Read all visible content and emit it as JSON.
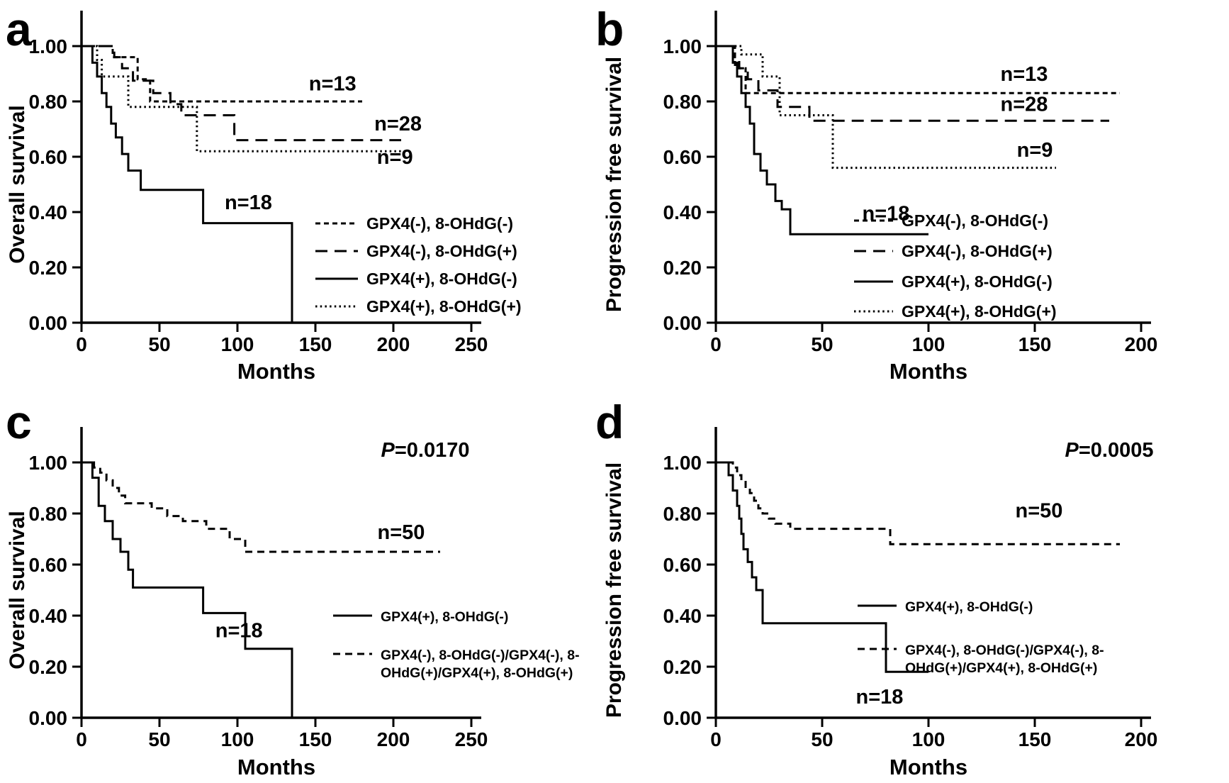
{
  "figure": {
    "background": "#ffffff",
    "ink_color": "#000000"
  },
  "chart_data": [
    {
      "type": "line",
      "panel_letter": "a",
      "xlabel": "Months",
      "ylabel": "Overall survival",
      "xlim": [
        0,
        250
      ],
      "ylim": [
        0,
        1
      ],
      "xticks": [
        0,
        50,
        100,
        150,
        200,
        250
      ],
      "yticks": [
        1.0,
        0.8,
        0.6,
        0.4,
        0.2,
        0.0
      ],
      "p_value": null,
      "series": [
        {
          "name": "GPX4(-), 8-OHdG(-)",
          "n": 13,
          "style": "dash-short",
          "x": [
            0,
            20,
            20,
            36,
            36,
            44,
            44,
            180
          ],
          "y": [
            1,
            1,
            0.96,
            0.96,
            0.88,
            0.88,
            0.8,
            0.8
          ]
        },
        {
          "name": "GPX4(-), 8-OHdG(+)",
          "n": 28,
          "style": "dash-long",
          "x": [
            0,
            21,
            21,
            26,
            26,
            33,
            33,
            46,
            46,
            57,
            57,
            64,
            64,
            98,
            98,
            205
          ],
          "y": [
            1,
            1,
            0.96,
            0.96,
            0.92,
            0.92,
            0.875,
            0.875,
            0.83,
            0.83,
            0.79,
            0.79,
            0.75,
            0.75,
            0.66,
            0.66
          ]
        },
        {
          "name": "GPX4(+), 8-OHdG(-)",
          "n": 18,
          "style": "solid",
          "x": [
            0,
            7,
            7,
            10,
            10,
            13,
            13,
            16,
            16,
            19,
            19,
            22,
            22,
            26,
            26,
            30,
            30,
            38,
            38,
            78,
            78,
            135,
            135
          ],
          "y": [
            1,
            1,
            0.94,
            0.94,
            0.89,
            0.89,
            0.83,
            0.83,
            0.78,
            0.78,
            0.72,
            0.72,
            0.67,
            0.67,
            0.61,
            0.61,
            0.55,
            0.55,
            0.48,
            0.48,
            0.36,
            0.36,
            0
          ]
        },
        {
          "name": "GPX4(+), 8-OHdG(+)",
          "n": 9,
          "style": "dotted",
          "x": [
            0,
            10,
            10,
            13,
            13,
            30,
            30,
            74,
            74,
            210
          ],
          "y": [
            1,
            1,
            0.95,
            0.95,
            0.89,
            0.89,
            0.78,
            0.78,
            0.62,
            0.62
          ]
        }
      ],
      "annotations": [
        {
          "text": "n=13",
          "x": 161,
          "y": 0.84
        },
        {
          "text": "n=28",
          "x": 203,
          "y": 0.695
        },
        {
          "text": "n=9",
          "x": 201,
          "y": 0.575
        },
        {
          "text": "n=18",
          "x": 107,
          "y": 0.41
        }
      ],
      "legend": [
        {
          "style": "dash-short",
          "lines": [
            "GPX4(-), 8-OHdG(-)"
          ]
        },
        {
          "style": "dash-long",
          "lines": [
            "GPX4(-), 8-OHdG(+)"
          ]
        },
        {
          "style": "solid",
          "lines": [
            "GPX4(+), 8-OHdG(-)"
          ]
        },
        {
          "style": "dotted",
          "lines": [
            "GPX4(+), 8-OHdG(+)"
          ]
        }
      ]
    },
    {
      "type": "line",
      "panel_letter": "b",
      "xlabel": "Months",
      "ylabel": "Progression free survival",
      "xlim": [
        0,
        200
      ],
      "ylim": [
        0,
        1
      ],
      "xticks": [
        0,
        50,
        100,
        150,
        200
      ],
      "yticks": [
        1.0,
        0.8,
        0.6,
        0.4,
        0.2,
        0.0
      ],
      "p_value": null,
      "series": [
        {
          "name": "GPX4(-), 8-OHdG(-)",
          "n": 13,
          "style": "dash-short",
          "x": [
            0,
            9,
            9,
            14,
            14,
            190
          ],
          "y": [
            1,
            1,
            0.92,
            0.92,
            0.83,
            0.83
          ]
        },
        {
          "name": "GPX4(-), 8-OHdG(+)",
          "n": 28,
          "style": "dash-long",
          "x": [
            0,
            8,
            8,
            11,
            11,
            15,
            15,
            20,
            20,
            29,
            29,
            44,
            44,
            185
          ],
          "y": [
            1,
            1,
            0.96,
            0.96,
            0.92,
            0.92,
            0.88,
            0.88,
            0.84,
            0.84,
            0.78,
            0.78,
            0.73,
            0.73
          ]
        },
        {
          "name": "GPX4(+), 8-OHdG(-)",
          "n": 18,
          "style": "solid",
          "x": [
            0,
            8,
            8,
            10,
            10,
            12,
            12,
            14,
            14,
            16,
            16,
            18,
            18,
            21,
            21,
            24,
            24,
            28,
            28,
            31,
            31,
            35,
            35,
            100
          ],
          "y": [
            1,
            1,
            0.94,
            0.94,
            0.89,
            0.89,
            0.83,
            0.83,
            0.78,
            0.78,
            0.72,
            0.72,
            0.61,
            0.61,
            0.55,
            0.55,
            0.5,
            0.5,
            0.44,
            0.44,
            0.41,
            0.41,
            0.32,
            0.32
          ]
        },
        {
          "name": "GPX4(+), 8-OHdG(+)",
          "n": 9,
          "style": "dotted",
          "x": [
            0,
            12,
            12,
            22,
            22,
            30,
            30,
            55,
            55,
            160
          ],
          "y": [
            1,
            1,
            0.97,
            0.97,
            0.89,
            0.89,
            0.75,
            0.75,
            0.56,
            0.56
          ]
        }
      ],
      "annotations": [
        {
          "text": "n=13",
          "x": 145,
          "y": 0.875
        },
        {
          "text": "n=28",
          "x": 145,
          "y": 0.765
        },
        {
          "text": "n=9",
          "x": 150,
          "y": 0.6
        },
        {
          "text": "n=18",
          "x": 80,
          "y": 0.37
        }
      ],
      "legend": [
        {
          "style": "dash-short",
          "lines": [
            "GPX4(-), 8-OHdG(-)"
          ]
        },
        {
          "style": "dash-long",
          "lines": [
            "GPX4(-), 8-OHdG(+)"
          ]
        },
        {
          "style": "solid",
          "lines": [
            "GPX4(+), 8-OHdG(-)"
          ]
        },
        {
          "style": "dotted",
          "lines": [
            "GPX4(+), 8-OHdG(+)"
          ]
        }
      ]
    },
    {
      "type": "line",
      "panel_letter": "c",
      "xlabel": "Months",
      "ylabel": "Overall survival",
      "xlim": [
        0,
        250
      ],
      "ylim": [
        0,
        1
      ],
      "xticks": [
        0,
        50,
        100,
        150,
        200,
        250
      ],
      "yticks": [
        1.0,
        0.8,
        0.6,
        0.4,
        0.2,
        0.0
      ],
      "p_value": "0.0170",
      "series": [
        {
          "name": "GPX4(+), 8-OHdG(-)",
          "n": 18,
          "style": "solid",
          "x": [
            0,
            7,
            7,
            11,
            11,
            15,
            15,
            20,
            20,
            25,
            25,
            30,
            30,
            33,
            33,
            78,
            78,
            105,
            105,
            135,
            135
          ],
          "y": [
            1,
            1,
            0.94,
            0.94,
            0.83,
            0.83,
            0.77,
            0.77,
            0.7,
            0.7,
            0.65,
            0.65,
            0.58,
            0.58,
            0.51,
            0.51,
            0.41,
            0.41,
            0.27,
            0.27,
            0
          ]
        },
        {
          "name": "GPX4(-), 8-OHdG(-)/GPX4(-), 8-OHdG(+)/GPX4(+), 8-OHdG(+)",
          "n": 50,
          "style": "dash-med",
          "x": [
            0,
            8,
            8,
            12,
            12,
            16,
            16,
            20,
            20,
            24,
            24,
            28,
            28,
            45,
            45,
            55,
            55,
            65,
            65,
            80,
            80,
            95,
            95,
            105,
            105,
            230
          ],
          "y": [
            1,
            1,
            0.98,
            0.98,
            0.96,
            0.96,
            0.93,
            0.93,
            0.9,
            0.9,
            0.87,
            0.87,
            0.84,
            0.84,
            0.82,
            0.82,
            0.79,
            0.79,
            0.77,
            0.77,
            0.74,
            0.74,
            0.7,
            0.7,
            0.65,
            0.65
          ]
        }
      ],
      "annotations": [
        {
          "text": "n=50",
          "x": 205,
          "y": 0.7
        },
        {
          "text": "n=18",
          "x": 101,
          "y": 0.315
        }
      ],
      "legend": [
        {
          "style": "solid",
          "lines": [
            "GPX4(+), 8-OHdG(-)"
          ]
        },
        {
          "style": "dash-med",
          "lines": [
            "GPX4(-), 8-OHdG(-)/GPX4(-), 8-",
            "OHdG(+)/GPX4(+), 8-OHdG(+)"
          ]
        }
      ]
    },
    {
      "type": "line",
      "panel_letter": "d",
      "xlabel": "Months",
      "ylabel": "Progression free survival",
      "xlim": [
        0,
        200
      ],
      "ylim": [
        0,
        1
      ],
      "xticks": [
        0,
        50,
        100,
        150,
        200
      ],
      "yticks": [
        1.0,
        0.8,
        0.6,
        0.4,
        0.2,
        0.0
      ],
      "p_value": "0.0005",
      "series": [
        {
          "name": "GPX4(+), 8-OHdG(-)",
          "n": 18,
          "style": "solid",
          "x": [
            0,
            6,
            6,
            8,
            8,
            10,
            10,
            11,
            11,
            12,
            12,
            13,
            13,
            15,
            15,
            17,
            17,
            19,
            19,
            22,
            22,
            80,
            80,
            100
          ],
          "y": [
            1,
            1,
            0.95,
            0.95,
            0.89,
            0.89,
            0.83,
            0.83,
            0.78,
            0.78,
            0.72,
            0.72,
            0.66,
            0.66,
            0.61,
            0.61,
            0.55,
            0.55,
            0.5,
            0.5,
            0.37,
            0.37,
            0.18,
            0.18
          ]
        },
        {
          "name": "GPX4(-), 8-OHdG(-)/GPX4(-), 8-OHdG(+)/GPX4(+), 8-OHdG(+)",
          "n": 50,
          "style": "dash-med",
          "x": [
            0,
            8,
            8,
            10,
            10,
            12,
            12,
            14,
            14,
            16,
            16,
            18,
            18,
            20,
            20,
            22,
            22,
            25,
            25,
            28,
            28,
            35,
            35,
            82,
            82,
            190
          ],
          "y": [
            1,
            1,
            0.98,
            0.98,
            0.95,
            0.95,
            0.93,
            0.93,
            0.9,
            0.9,
            0.88,
            0.88,
            0.85,
            0.85,
            0.82,
            0.82,
            0.8,
            0.8,
            0.78,
            0.78,
            0.76,
            0.76,
            0.74,
            0.74,
            0.68,
            0.68
          ]
        }
      ],
      "annotations": [
        {
          "text": "n=50",
          "x": 152,
          "y": 0.785
        },
        {
          "text": "n=18",
          "x": 77,
          "y": 0.055
        }
      ],
      "legend": [
        {
          "style": "solid",
          "lines": [
            "GPX4(+), 8-OHdG(-)"
          ]
        },
        {
          "style": "dash-med",
          "lines": [
            "GPX4(-), 8-OHdG(-)/GPX4(-), 8-",
            "OHdG(+)/GPX4(+), 8-OHdG(+)"
          ]
        }
      ]
    }
  ]
}
